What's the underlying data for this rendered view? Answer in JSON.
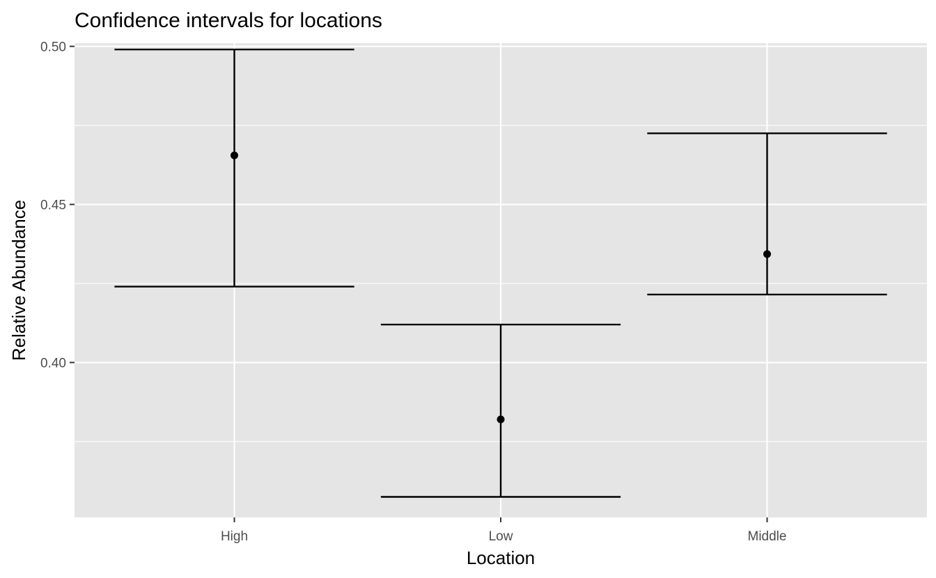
{
  "chart_data": {
    "type": "errorbar",
    "title": "Confidence intervals for locations",
    "xlabel": "Location",
    "ylabel": "Relative Abundance",
    "categories": [
      "High",
      "Low",
      "Middle"
    ],
    "points": [
      {
        "category": "High",
        "value": 0.4655,
        "lower": 0.424,
        "upper": 0.499
      },
      {
        "category": "Low",
        "value": 0.382,
        "lower": 0.3575,
        "upper": 0.412
      },
      {
        "category": "Middle",
        "value": 0.4343,
        "lower": 0.4215,
        "upper": 0.4725
      }
    ],
    "ylim": [
      0.351,
      0.501
    ],
    "yticks": [
      0.4,
      0.45,
      0.5
    ],
    "ytick_labels": [
      "0.40",
      "0.45",
      "0.50"
    ],
    "grid": true,
    "legend": "none",
    "colors": {
      "panel_background": "#e5e5e5",
      "grid_line": "#ffffff",
      "mark": "#000000",
      "tick_label": "#4d4d4d",
      "axis_tick": "#333333"
    }
  }
}
